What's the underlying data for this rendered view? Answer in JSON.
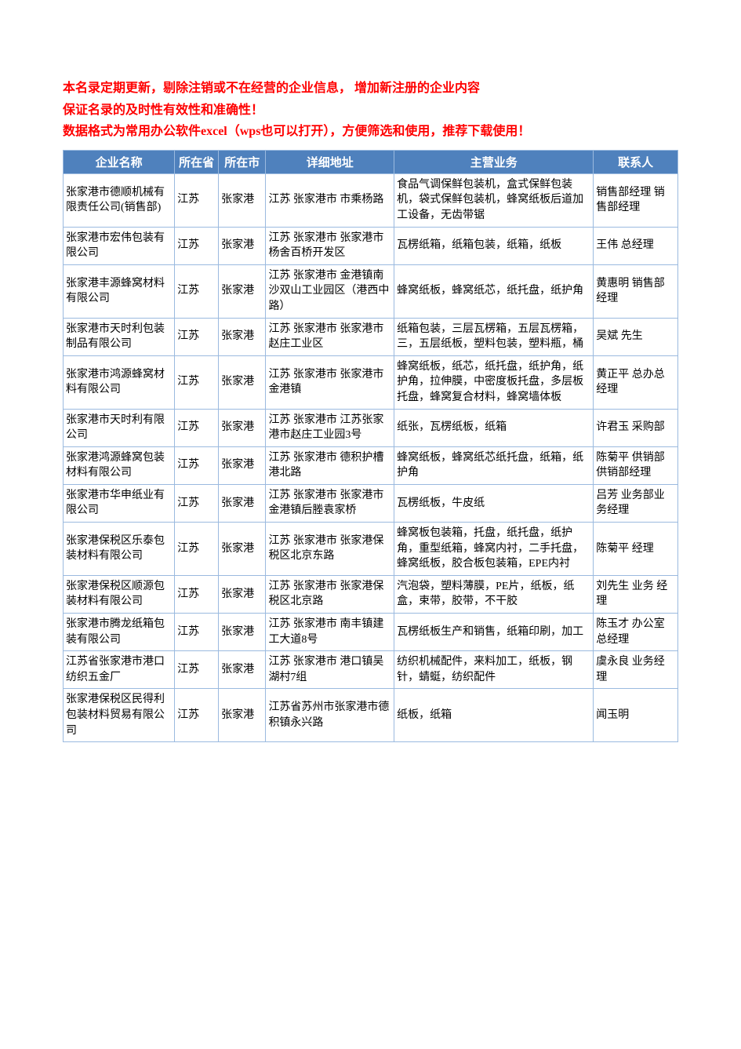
{
  "intro": {
    "line1": "本名录定期更新，剔除注销或不在经营的企业信息，  增加新注册的企业内容",
    "line2": "保证名录的及时性有效性和准确性！",
    "line3": "数据格式为常用办公软件excel（wps也可以打开），方便筛选和使用，推荐下载使用！"
  },
  "table": {
    "header_bg": "#4f81bd",
    "header_fg": "#ffffff",
    "border_color": "#9bbadf",
    "columns": [
      "企业名称",
      "所在省",
      "所在市",
      "详细地址",
      "主营业务",
      "联系人"
    ],
    "rows": [
      [
        "张家港市德顺机械有限责任公司(销售部)",
        "江苏",
        "张家港",
        "江苏  张家港市  市乘杨路",
        "食品气调保鲜包装机，盒式保鲜包装机，袋式保鲜包装机，蜂窝纸板后道加工设备，无齿带锯",
        "销售部经理  销售部经理"
      ],
      [
        "张家港市宏伟包装有限公司",
        "江苏",
        "张家港",
        "江苏  张家港市  张家港市杨舍百桥开发区",
        "瓦楞纸箱，纸箱包装，纸箱，纸板",
        "王伟   总经理"
      ],
      [
        "张家港丰源蜂窝材料有限公司",
        "江苏",
        "张家港",
        "江苏  张家港市  金港镇南沙双山工业园区（港西中路）",
        "蜂窝纸板，蜂窝纸芯，纸托盘，纸护角",
        "黄惠明  销售部 经理"
      ],
      [
        "张家港市天时利包装制品有限公司",
        "江苏",
        "张家港",
        "江苏  张家港市  张家港市赵庄工业区",
        "纸箱包装，三层瓦楞箱，五层瓦楞箱，三，五层纸板，塑料包装，塑料瓶，桶",
        "吴斌   先生"
      ],
      [
        "张家港市鸿源蜂窝材料有限公司",
        "江苏",
        "张家港",
        "江苏  张家港市  张家港市金港镇",
        "蜂窝纸板，纸芯，纸托盘，纸护角，纸护角，拉伸膜，中密度板托盘，多层板托盘，蜂窝复合材料，蜂窝墙体板",
        "黄正平   总办总经理"
      ],
      [
        "张家港市天时利有限公司",
        "江苏",
        "张家港",
        "江苏  张家港市  江苏张家港市赵庄工业园3号",
        "纸张，瓦楞纸板，纸箱",
        "许君玉   采购部"
      ],
      [
        "张家港鸿源蜂窝包装材料有限公司",
        "江苏",
        "张家港",
        "江苏  张家港市  德积护槽港北路",
        "蜂窝纸板，蜂窝纸芯纸托盘，纸箱，纸护角",
        "陈菊平   供销部供销部经理"
      ],
      [
        "张家港市华申纸业有限公司",
        "江苏",
        "张家港",
        "江苏  张家港市  张家港市金港镇后塍袁家桥",
        "瓦楞纸板，牛皮纸",
        "吕芳   业务部业务经理"
      ],
      [
        "张家港保税区乐泰包装材料有限公司",
        "江苏",
        "张家港",
        "江苏  张家港市  张家港保税区北京东路",
        "蜂窝板包装箱，托盘，纸托盘，纸护角，重型纸箱，蜂窝内衬，二手托盘，蜂窝纸板，胶合板包装箱，EPE内衬",
        "陈菊平   经理"
      ],
      [
        "张家港保税区顺源包装材料有限公司",
        "江苏",
        "张家港",
        "江苏  张家港市  张家港保税区北京路",
        "汽泡袋，塑料薄膜，PE片，纸板，纸盒，束带，胶带，不干胶",
        "刘先生  业务 经理"
      ],
      [
        "张家港市腾龙纸箱包装有限公司",
        "江苏",
        "张家港",
        "江苏  张家港市  南丰镇建工大道8号",
        "瓦楞纸板生产和销售，纸箱印刷，加工",
        "陈玉才 办公室 总经理"
      ],
      [
        "江苏省张家港市港口纺织五金厂",
        "江苏",
        "张家港",
        "江苏  张家港市  港口镇吴湖村7组",
        "纺织机械配件，来料加工，纸板，钢针，蜻蜓，纺织配件",
        "虞永良   业务经理"
      ],
      [
        "张家港保税区民得利包装材料贸易有限公司",
        "江苏",
        "张家港",
        "江苏省苏州市张家港市德积镇永兴路",
        "纸板，纸箱",
        "闻玉明"
      ]
    ]
  }
}
